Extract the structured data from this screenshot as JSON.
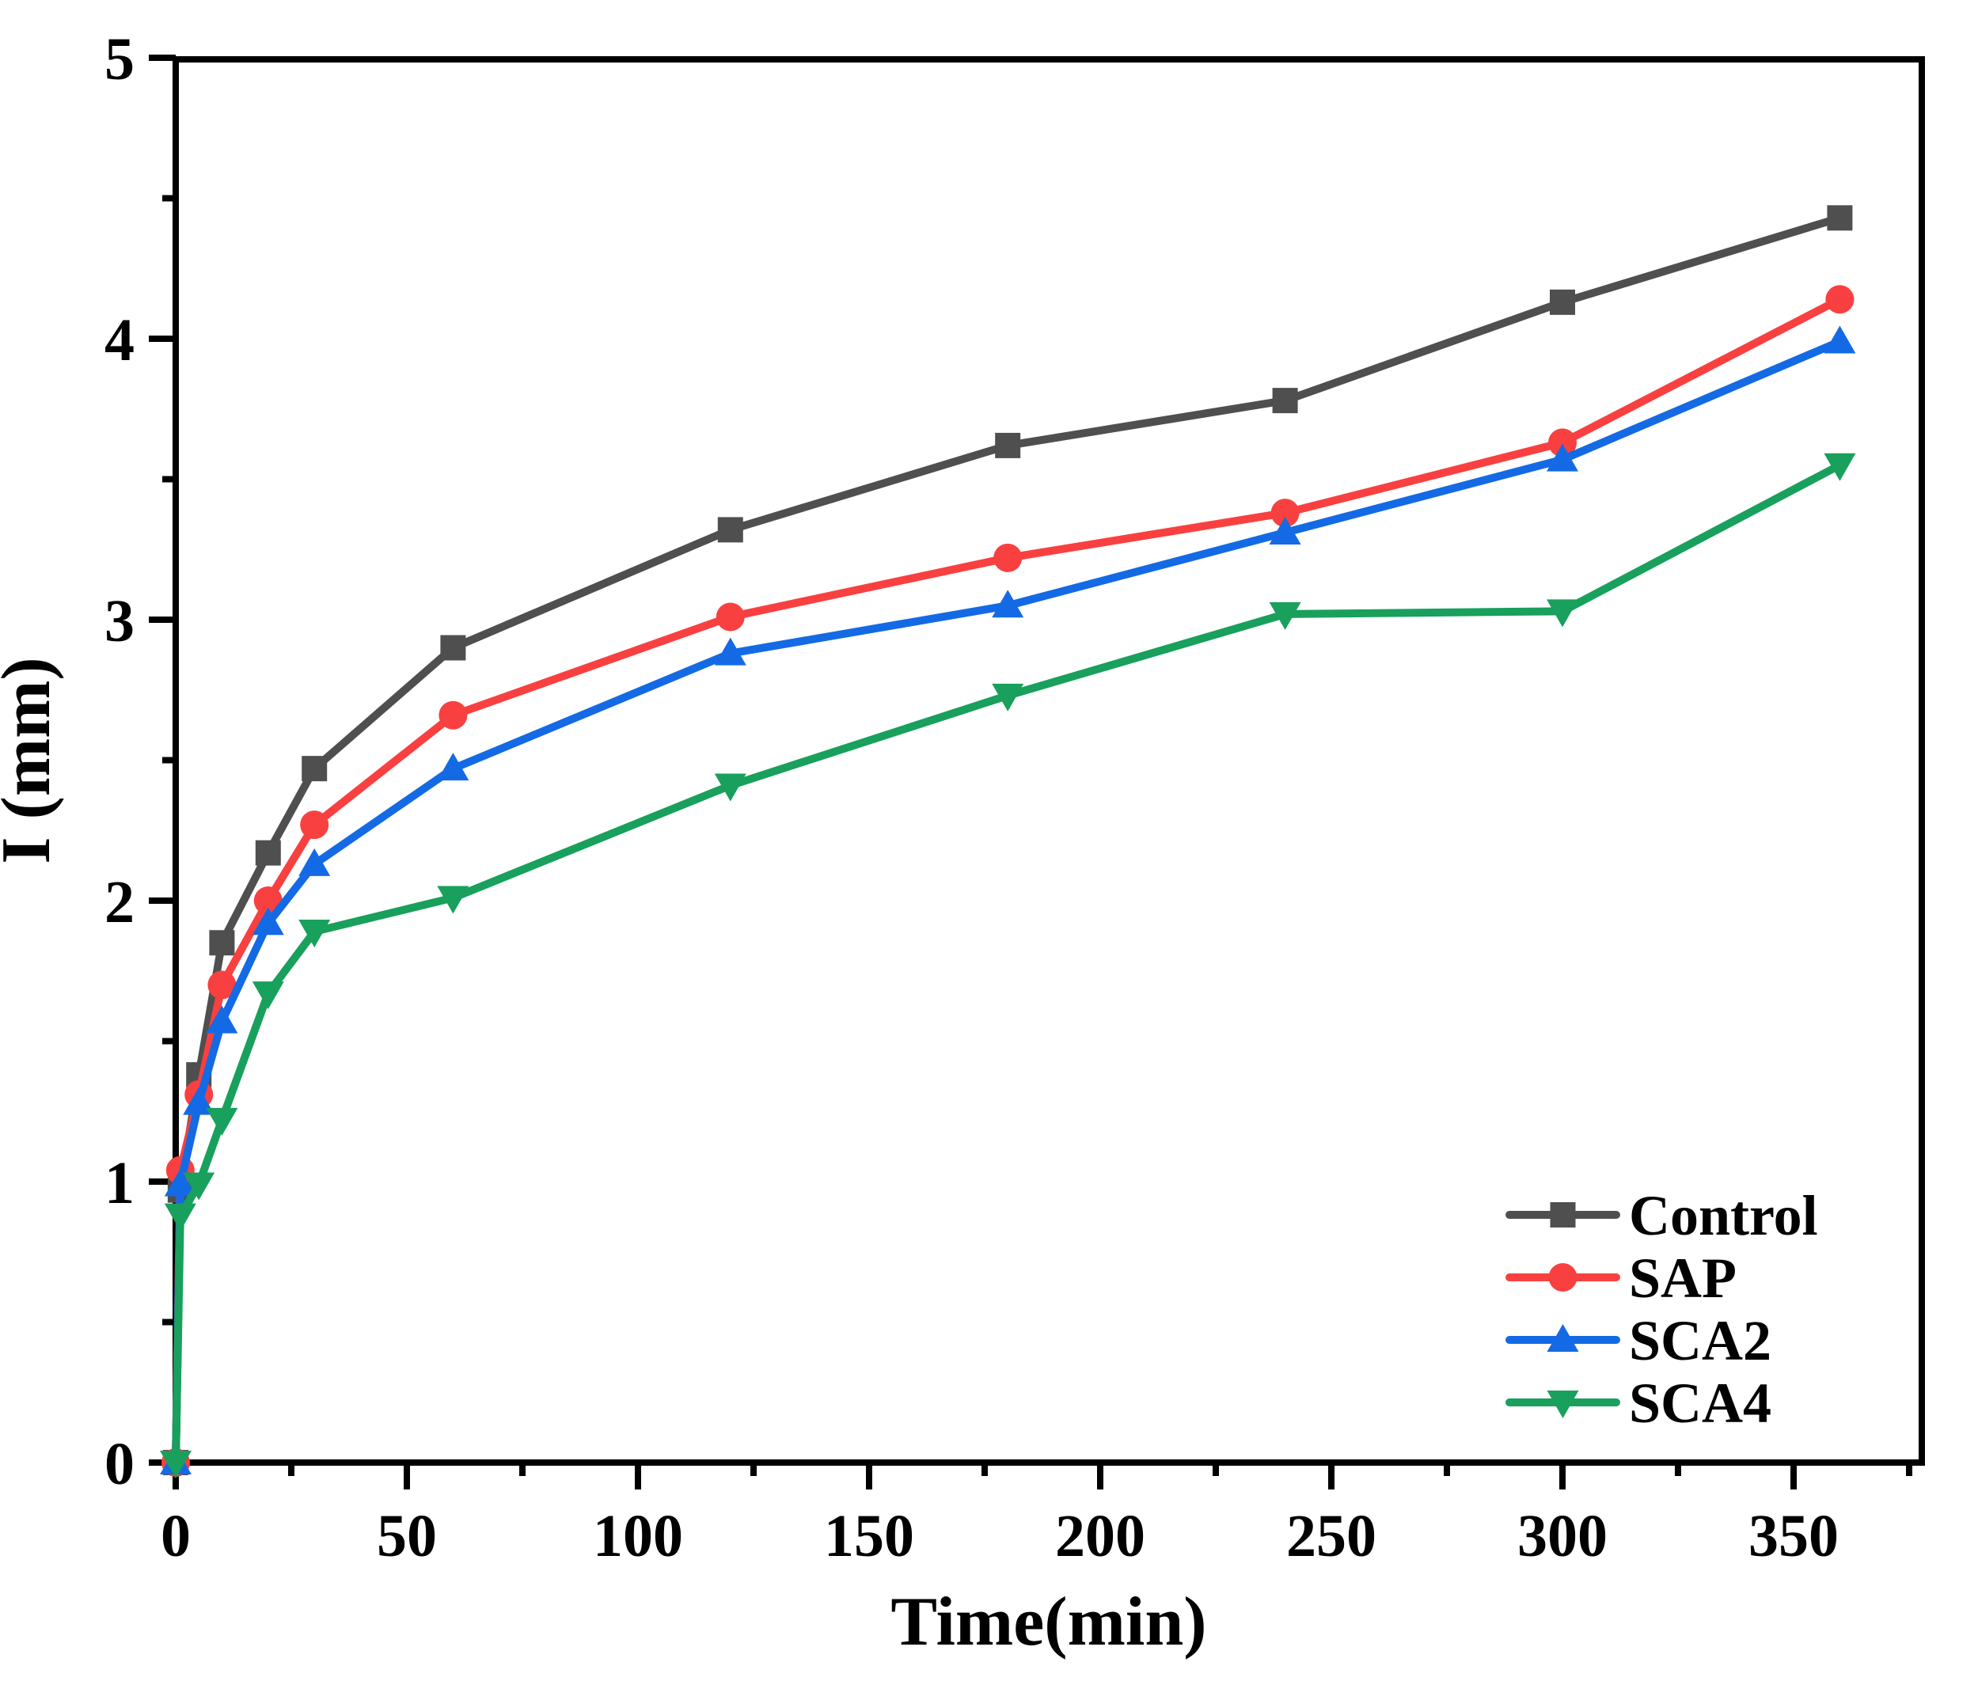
{
  "chart_data": {
    "type": "line",
    "title": "",
    "xlabel": "Time(min)",
    "ylabel": "I (mm)",
    "xlim": [
      0,
      377.7
    ],
    "ylim": [
      0,
      5
    ],
    "grid": false,
    "legend_position": "lower-right",
    "x_major_ticks": [
      0,
      50,
      100,
      150,
      200,
      250,
      300,
      350
    ],
    "x_minor_ticks": [
      25,
      75,
      125,
      175,
      225,
      275,
      325,
      375
    ],
    "y_major_ticks": [
      0,
      1,
      2,
      3,
      4,
      5
    ],
    "y_minor_ticks": [
      0.5,
      1.5,
      2.5,
      3.5,
      4.5
    ],
    "x": [
      0,
      1,
      5,
      10,
      20,
      30,
      60,
      120,
      180,
      240,
      300,
      360
    ],
    "series": [
      {
        "name": "Control",
        "color": "#4f4f4f",
        "marker": "square",
        "values": [
          0,
          0.97,
          1.38,
          1.85,
          2.17,
          2.47,
          2.9,
          3.32,
          3.62,
          3.78,
          4.13,
          4.43
        ]
      },
      {
        "name": "SAP",
        "color": "#f94040",
        "marker": "circle",
        "values": [
          0,
          1.04,
          1.31,
          1.7,
          2.0,
          2.27,
          2.66,
          3.01,
          3.22,
          3.38,
          3.63,
          4.14
        ]
      },
      {
        "name": "SCA2",
        "color": "#146ae4",
        "marker": "triangle-up",
        "values": [
          0,
          0.99,
          1.28,
          1.57,
          1.92,
          2.13,
          2.47,
          2.88,
          3.05,
          3.31,
          3.57,
          3.99
        ]
      },
      {
        "name": "SCA4",
        "color": "#18a05c",
        "marker": "triangle-down",
        "values": [
          0,
          0.88,
          0.99,
          1.22,
          1.67,
          1.89,
          2.01,
          2.41,
          2.73,
          3.02,
          3.03,
          3.55
        ]
      }
    ]
  }
}
